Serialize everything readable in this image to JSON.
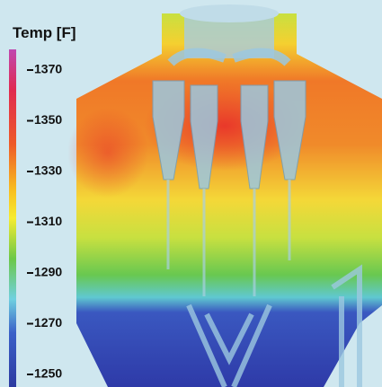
{
  "legend": {
    "title": "Temp [F]",
    "ticks": [
      "1370",
      "1350",
      "1330",
      "1310",
      "1290",
      "1270",
      "1250"
    ]
  }
}
